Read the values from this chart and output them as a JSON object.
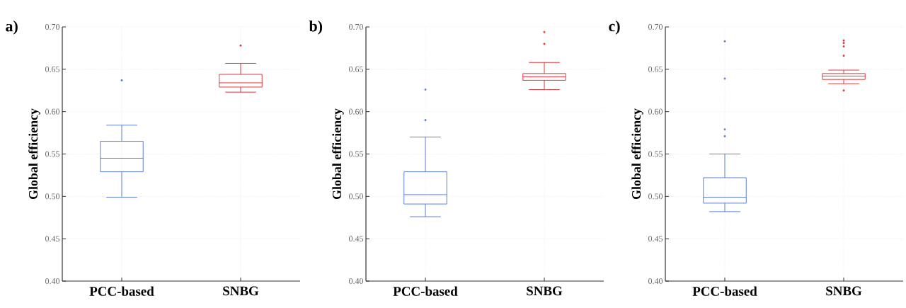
{
  "chart_data": [
    {
      "type": "box",
      "title": "a)",
      "ylabel": "Global efficiency",
      "categories": [
        "PCC-based",
        "SNBG"
      ],
      "colors": [
        "#5b7fd6",
        "#e0393e"
      ],
      "boxes": [
        {
          "low": 0.499,
          "q1": 0.529,
          "median": 0.545,
          "q3": 0.565,
          "high": 0.584,
          "outliers": [
            0.637
          ]
        },
        {
          "low": 0.623,
          "q1": 0.629,
          "median": 0.634,
          "q3": 0.644,
          "high": 0.657,
          "outliers": [
            0.678
          ]
        }
      ],
      "ylim": [
        0.4,
        0.7
      ],
      "yticks": [
        {
          "value": 0.4,
          "label": "0.40"
        },
        {
          "value": 0.45,
          "label": "0.45"
        },
        {
          "value": 0.5,
          "label": "0.50"
        },
        {
          "value": 0.55,
          "label": "0.55"
        },
        {
          "value": 0.6,
          "label": "0.60"
        },
        {
          "value": 0.65,
          "label": "0.65"
        },
        {
          "value": 0.7,
          "label": "0.70"
        }
      ],
      "grid": true
    },
    {
      "type": "box",
      "title": "b)",
      "ylabel": "Global efficiency",
      "categories": [
        "PCC-based",
        "SNBG"
      ],
      "colors": [
        "#5b7fd6",
        "#e0393e"
      ],
      "boxes": [
        {
          "low": 0.476,
          "q1": 0.491,
          "median": 0.502,
          "q3": 0.529,
          "high": 0.57,
          "outliers": [
            0.59,
            0.626
          ]
        },
        {
          "low": 0.626,
          "q1": 0.637,
          "median": 0.641,
          "q3": 0.645,
          "high": 0.658,
          "outliers": [
            0.68,
            0.694
          ]
        }
      ],
      "ylim": [
        0.4,
        0.7
      ],
      "yticks": [
        {
          "value": 0.4,
          "label": "0.40"
        },
        {
          "value": 0.45,
          "label": "0.45"
        },
        {
          "value": 0.5,
          "label": "0.50"
        },
        {
          "value": 0.55,
          "label": "0.55"
        },
        {
          "value": 0.6,
          "label": "0.60"
        },
        {
          "value": 0.65,
          "label": "0.65"
        },
        {
          "value": 0.7,
          "label": "0.70"
        }
      ],
      "grid": true
    },
    {
      "type": "box",
      "title": "c)",
      "ylabel": "Global efficiency",
      "categories": [
        "PCC-based",
        "SNBG"
      ],
      "colors": [
        "#5b7fd6",
        "#e0393e"
      ],
      "boxes": [
        {
          "low": 0.482,
          "q1": 0.492,
          "median": 0.499,
          "q3": 0.522,
          "high": 0.55,
          "outliers": [
            0.571,
            0.579,
            0.639,
            0.683
          ]
        },
        {
          "low": 0.633,
          "q1": 0.638,
          "median": 0.642,
          "q3": 0.645,
          "high": 0.649,
          "outliers": [
            0.625,
            0.666,
            0.677,
            0.681,
            0.684
          ]
        }
      ],
      "ylim": [
        0.4,
        0.7
      ],
      "yticks": [
        {
          "value": 0.4,
          "label": "0.40"
        },
        {
          "value": 0.45,
          "label": "0.45"
        },
        {
          "value": 0.5,
          "label": "0.50"
        },
        {
          "value": 0.55,
          "label": "0.55"
        },
        {
          "value": 0.6,
          "label": "0.60"
        },
        {
          "value": 0.65,
          "label": "0.65"
        },
        {
          "value": 0.7,
          "label": "0.70"
        }
      ],
      "grid": true
    }
  ]
}
